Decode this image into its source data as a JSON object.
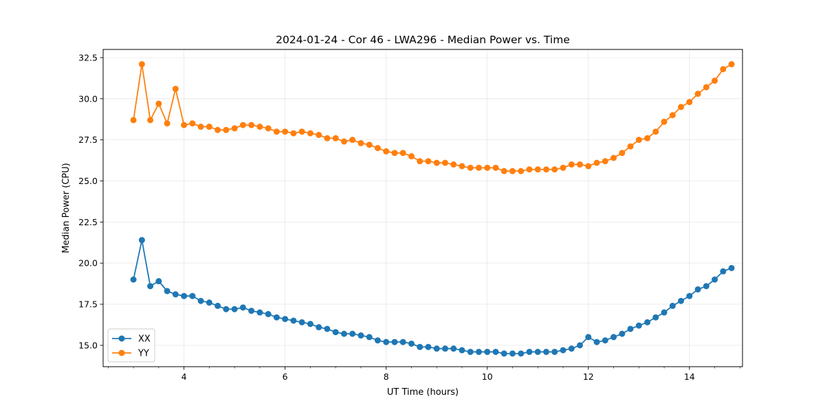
{
  "chart_data": {
    "type": "line",
    "title": "2024-01-24 - Cor 46 - LWA296 - Median Power vs. Time",
    "xlabel": "UT Time (hours)",
    "ylabel": "Median Power (CPU)",
    "xlim": [
      2.4,
      15.05
    ],
    "ylim": [
      13.7,
      33.0
    ],
    "xticks": [
      4,
      6,
      8,
      10,
      12,
      14
    ],
    "xtick_labels": [
      "4",
      "6",
      "8",
      "10",
      "12",
      "14"
    ],
    "yticks": [
      15.0,
      17.5,
      20.0,
      22.5,
      25.0,
      27.5,
      30.0,
      32.5
    ],
    "ytick_labels": [
      "15.0",
      "17.5",
      "20.0",
      "22.5",
      "25.0",
      "27.5",
      "30.0",
      "32.5"
    ],
    "grid": true,
    "legend_position": "bottom-left",
    "x": [
      3.0,
      3.167,
      3.333,
      3.5,
      3.667,
      3.833,
      4.0,
      4.167,
      4.333,
      4.5,
      4.667,
      4.833,
      5.0,
      5.167,
      5.333,
      5.5,
      5.667,
      5.833,
      6.0,
      6.167,
      6.333,
      6.5,
      6.667,
      6.833,
      7.0,
      7.167,
      7.333,
      7.5,
      7.667,
      7.833,
      8.0,
      8.167,
      8.333,
      8.5,
      8.667,
      8.833,
      9.0,
      9.167,
      9.333,
      9.5,
      9.667,
      9.833,
      10.0,
      10.167,
      10.333,
      10.5,
      10.667,
      10.833,
      11.0,
      11.167,
      11.333,
      11.5,
      11.667,
      11.833,
      12.0,
      12.167,
      12.333,
      12.5,
      12.667,
      12.833,
      13.0,
      13.167,
      13.333,
      13.5,
      13.667,
      13.833,
      14.0,
      14.167,
      14.333,
      14.5,
      14.667,
      14.833
    ],
    "series": [
      {
        "name": "XX",
        "color": "#1f77b4",
        "values": [
          19.0,
          21.4,
          18.6,
          18.9,
          18.3,
          18.1,
          18.0,
          18.0,
          17.7,
          17.6,
          17.4,
          17.2,
          17.2,
          17.3,
          17.1,
          17.0,
          16.9,
          16.7,
          16.6,
          16.5,
          16.4,
          16.3,
          16.1,
          16.0,
          15.8,
          15.7,
          15.7,
          15.6,
          15.5,
          15.3,
          15.2,
          15.2,
          15.2,
          15.1,
          14.9,
          14.9,
          14.8,
          14.8,
          14.8,
          14.7,
          14.6,
          14.6,
          14.6,
          14.6,
          14.5,
          14.5,
          14.5,
          14.6,
          14.6,
          14.6,
          14.6,
          14.7,
          14.8,
          15.0,
          15.5,
          15.2,
          15.3,
          15.5,
          15.7,
          16.0,
          16.2,
          16.4,
          16.7,
          17.0,
          17.4,
          17.7,
          18.0,
          18.4,
          18.6,
          19.0,
          19.5,
          19.7
        ]
      },
      {
        "name": "YY",
        "color": "#ff7f0e",
        "values": [
          28.7,
          32.1,
          28.7,
          29.7,
          28.5,
          30.6,
          28.4,
          28.5,
          28.3,
          28.3,
          28.1,
          28.1,
          28.2,
          28.4,
          28.4,
          28.3,
          28.2,
          28.0,
          28.0,
          27.9,
          28.0,
          27.9,
          27.8,
          27.6,
          27.6,
          27.4,
          27.5,
          27.3,
          27.2,
          27.0,
          26.8,
          26.7,
          26.7,
          26.5,
          26.2,
          26.2,
          26.1,
          26.1,
          26.0,
          25.9,
          25.8,
          25.8,
          25.8,
          25.8,
          25.6,
          25.6,
          25.6,
          25.7,
          25.7,
          25.7,
          25.7,
          25.8,
          26.0,
          26.0,
          25.9,
          26.1,
          26.2,
          26.4,
          26.7,
          27.1,
          27.5,
          27.6,
          28.0,
          28.6,
          29.0,
          29.5,
          29.8,
          30.3,
          30.7,
          31.1,
          31.8,
          32.1
        ]
      }
    ]
  }
}
